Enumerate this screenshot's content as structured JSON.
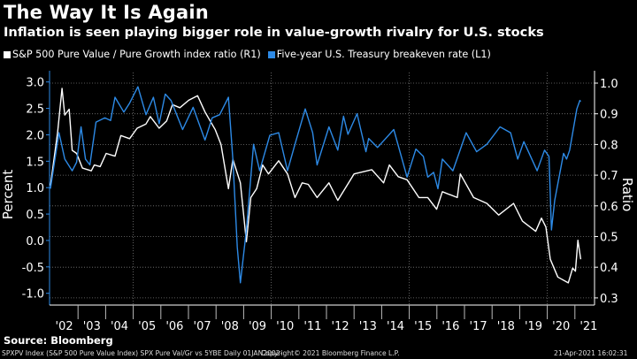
{
  "header": {
    "title": "The Way It Is Again",
    "subtitle": "Inflation is seen playing bigger role in value-growth rivalry for U.S. stocks"
  },
  "source": "Source: Bloomberg",
  "footer": {
    "left": "SPXPV Index (S&P 500 Pure Value Index) SPX Pure Val/Gr vs 5YBE  Daily 01JAN2002-",
    "center": "Copyright© 2021 Bloomberg Finance L.P.",
    "right": "21-Apr-2021 16:02:31"
  },
  "chart_data": {
    "type": "line",
    "title": "The Way It Is Again",
    "subtitle": "Inflation is seen playing bigger role in value-growth rivalry for U.S. stocks",
    "legend_position": "top-left",
    "grid": true,
    "x_tick_labels": [
      "'02",
      "'03",
      "'04",
      "'05",
      "'06",
      "'07",
      "'08",
      "'09",
      "'10",
      "'11",
      "'12",
      "'13",
      "'14",
      "'15",
      "'16",
      "'17",
      "'18",
      "'19",
      "'20",
      "'21"
    ],
    "xlim": [
      2002,
      2021.4
    ],
    "left_axis": {
      "label": "Percent",
      "ylim": [
        -1.1,
        3.2
      ],
      "ticks": [
        "3.0",
        "2.5",
        "2.0",
        "1.5",
        "1.0",
        "0.5",
        "0.0",
        "-0.5",
        "-1.0"
      ]
    },
    "right_axis": {
      "label": "Ratio",
      "ylim": [
        0.3,
        1.02
      ],
      "ticks": [
        "1.0",
        "0.9",
        "0.8",
        "0.7",
        "0.6",
        "0.5",
        "0.4",
        "0.3"
      ]
    },
    "series": [
      {
        "name": "S&P 500 Pure Value / Pure Growth index ratio (R1)",
        "axis": "right",
        "color": "#ffffff",
        "x": [
          2002.0,
          2002.26,
          2002.42,
          2002.52,
          2002.68,
          2002.79,
          2002.95,
          2003.16,
          2003.48,
          2003.59,
          2003.8,
          2004.02,
          2004.34,
          2004.55,
          2004.87,
          2005.14,
          2005.46,
          2005.62,
          2005.94,
          2006.21,
          2006.42,
          2006.69,
          2007.01,
          2007.33,
          2007.6,
          2007.97,
          2008.18,
          2008.45,
          2008.61,
          2008.88,
          2009.1,
          2009.26,
          2009.47,
          2009.69,
          2009.9,
          2010.27,
          2010.59,
          2010.86,
          2011.12,
          2011.34,
          2011.66,
          2012.09,
          2012.41,
          2013.0,
          2013.64,
          2014.07,
          2014.28,
          2014.6,
          2014.92,
          2015.35,
          2015.67,
          2015.99,
          2016.2,
          2016.74,
          2016.85,
          2017.33,
          2017.81,
          2018.24,
          2018.78,
          2019.1,
          2019.58,
          2019.79,
          2019.95,
          2020.11,
          2020.38,
          2020.76,
          2020.92,
          2021.02,
          2021.11,
          2021.21
        ],
        "y": [
          0.666,
          0.839,
          0.983,
          0.896,
          0.915,
          0.781,
          0.771,
          0.723,
          0.714,
          0.733,
          0.728,
          0.771,
          0.762,
          0.829,
          0.819,
          0.853,
          0.867,
          0.891,
          0.853,
          0.877,
          0.93,
          0.92,
          0.944,
          0.959,
          0.906,
          0.848,
          0.8,
          0.656,
          0.752,
          0.675,
          0.483,
          0.627,
          0.656,
          0.733,
          0.704,
          0.747,
          0.704,
          0.627,
          0.675,
          0.67,
          0.627,
          0.675,
          0.618,
          0.704,
          0.718,
          0.675,
          0.733,
          0.695,
          0.685,
          0.627,
          0.627,
          0.589,
          0.646,
          0.627,
          0.704,
          0.627,
          0.608,
          0.57,
          0.608,
          0.55,
          0.517,
          0.56,
          0.531,
          0.426,
          0.368,
          0.349,
          0.397,
          0.387,
          0.488,
          0.426
        ]
      },
      {
        "name": "Five-year U.S. Treasury breakeven rate (L1)",
        "axis": "left",
        "color": "#2d8ae6",
        "x": [
          2002.0,
          2002.31,
          2002.52,
          2002.79,
          2002.95,
          2003.11,
          2003.27,
          2003.43,
          2003.65,
          2003.97,
          2004.18,
          2004.34,
          2004.66,
          2004.87,
          2005.17,
          2005.46,
          2005.73,
          2005.94,
          2006.16,
          2006.37,
          2006.79,
          2007.17,
          2007.6,
          2007.86,
          2008.13,
          2008.45,
          2008.61,
          2008.77,
          2008.88,
          2009.1,
          2009.36,
          2009.58,
          2009.95,
          2010.27,
          2010.59,
          2010.86,
          2011.23,
          2011.5,
          2011.66,
          2012.09,
          2012.41,
          2012.62,
          2012.78,
          2013.11,
          2013.43,
          2013.53,
          2013.85,
          2014.44,
          2014.92,
          2015.24,
          2015.51,
          2015.67,
          2015.88,
          2016.04,
          2016.2,
          2016.58,
          2017.06,
          2017.44,
          2017.81,
          2018.29,
          2018.67,
          2018.93,
          2019.15,
          2019.63,
          2019.9,
          2020.06,
          2020.15,
          2020.27,
          2020.59,
          2020.7,
          2020.81,
          2021.07,
          2021.18,
          2021.21
        ],
        "y": [
          0.98,
          2.04,
          1.54,
          1.32,
          1.48,
          2.15,
          1.54,
          1.43,
          2.24,
          2.32,
          2.27,
          2.71,
          2.43,
          2.6,
          2.91,
          2.38,
          2.71,
          2.21,
          2.77,
          2.65,
          2.1,
          2.52,
          1.9,
          2.32,
          2.38,
          2.71,
          1.54,
          -0.13,
          -0.8,
          0.2,
          1.82,
          1.32,
          1.99,
          2.04,
          1.32,
          1.82,
          2.49,
          2.04,
          1.43,
          2.15,
          1.71,
          2.35,
          2.01,
          2.4,
          1.68,
          1.93,
          1.76,
          2.1,
          1.2,
          1.73,
          1.59,
          1.2,
          1.29,
          0.98,
          1.54,
          1.32,
          2.04,
          1.68,
          1.82,
          2.15,
          2.04,
          1.54,
          1.87,
          1.32,
          1.71,
          1.59,
          0.2,
          0.76,
          1.65,
          1.54,
          1.71,
          2.49,
          2.65,
          2.63
        ]
      }
    ]
  }
}
